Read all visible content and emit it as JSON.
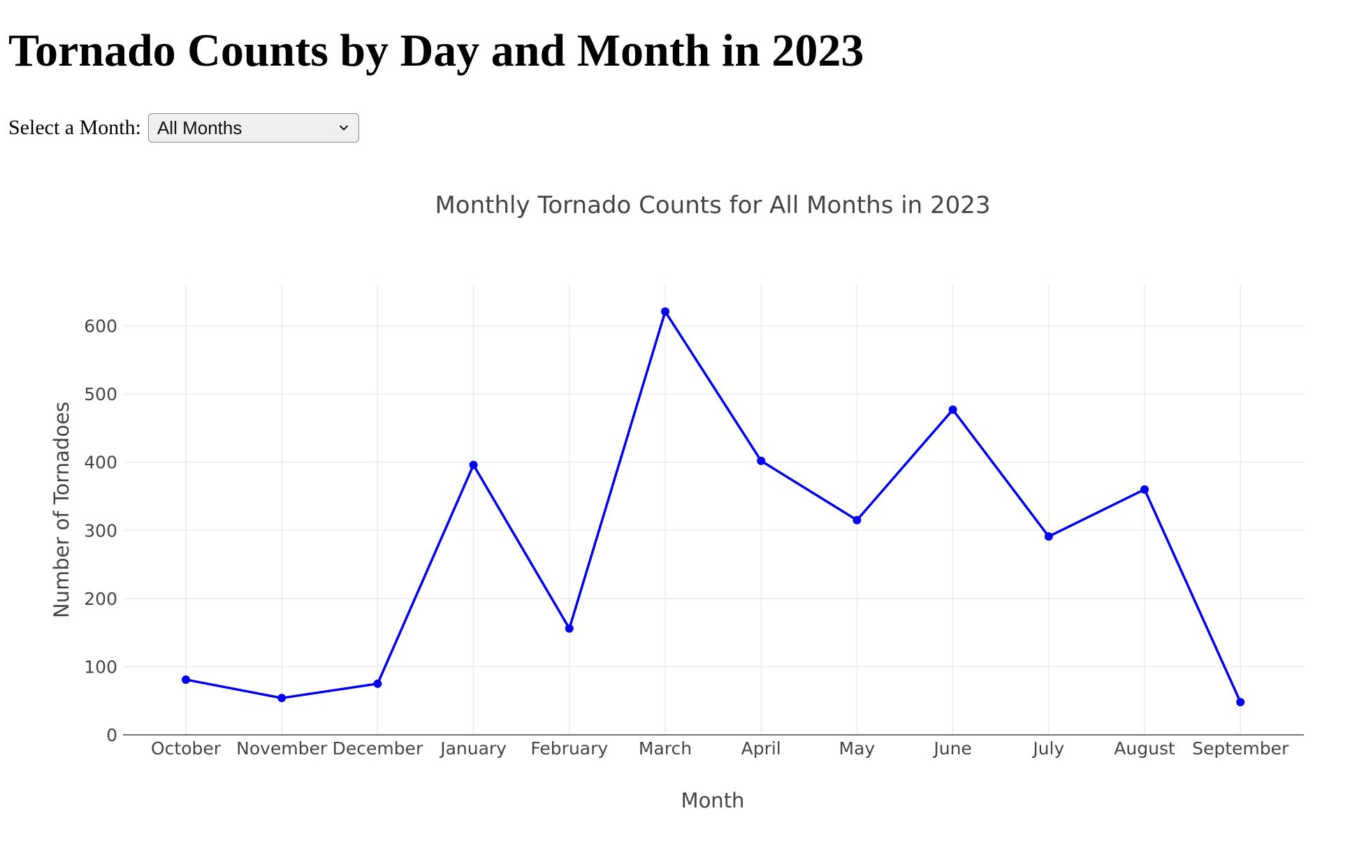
{
  "page": {
    "title": "Tornado Counts by Day and Month in 2023"
  },
  "month_picker": {
    "label": "Select a Month:",
    "selected": "All Months",
    "icon": "chevron-down-icon"
  },
  "colors": {
    "series": "#0000ee",
    "grid": "#ebebeb",
    "axis_text": "#444444"
  },
  "chart_data": {
    "type": "line",
    "title": "Monthly Tornado Counts for All Months in 2023",
    "xlabel": "Month",
    "ylabel": "Number of Tornadoes",
    "categories": [
      "October",
      "November",
      "December",
      "January",
      "February",
      "March",
      "April",
      "May",
      "June",
      "July",
      "August",
      "September"
    ],
    "series": [
      {
        "values": [
          81,
          54,
          75,
          396,
          156,
          621,
          402,
          315,
          477,
          291,
          360,
          48
        ]
      }
    ],
    "ylim": [
      0,
      661
    ],
    "yticks": [
      0,
      100,
      200,
      300,
      400,
      500,
      600
    ],
    "grid": true,
    "markers": true,
    "legend": "none"
  }
}
